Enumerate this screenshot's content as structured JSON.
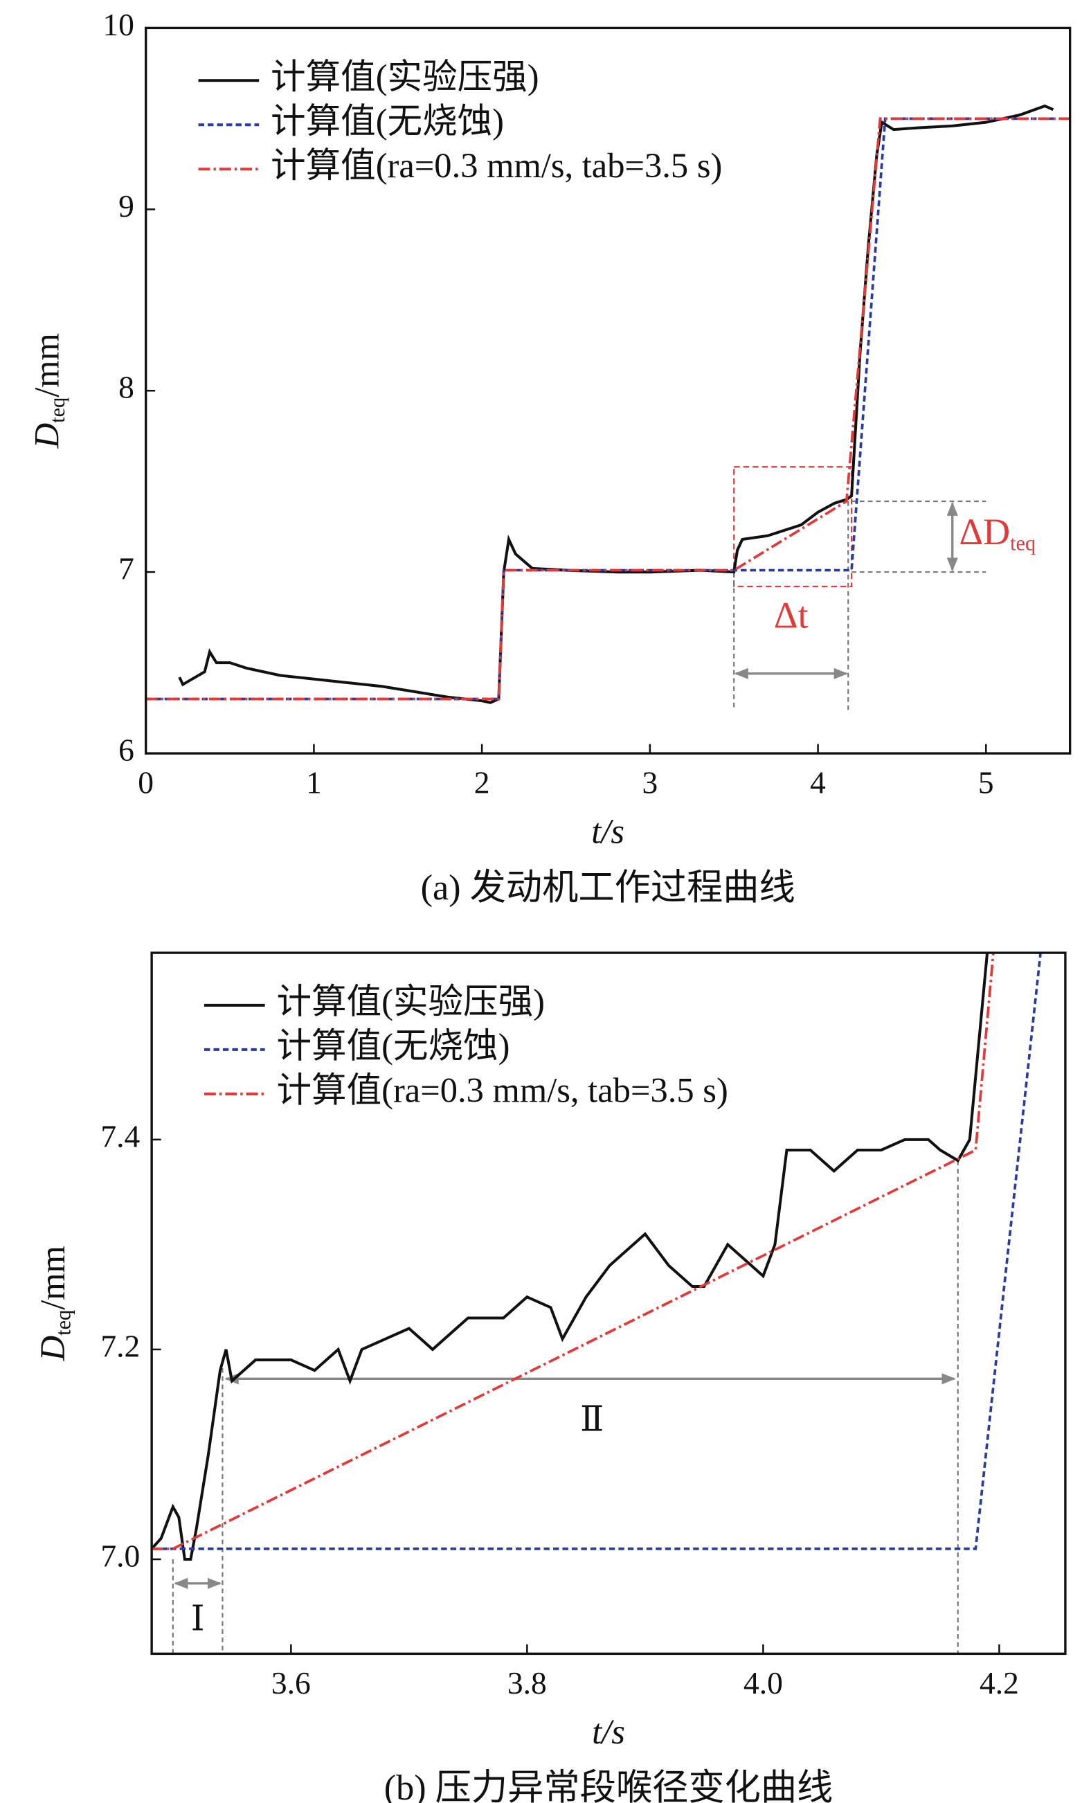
{
  "chart_data": [
    {
      "type": "line",
      "caption": "(a) 发动机工作过程曲线",
      "xlabel": "t/s",
      "ylabel": "D",
      "ylabel_sub": "teq",
      "ylabel_unit": "/mm",
      "xlim": [
        0,
        5.5
      ],
      "ylim": [
        6,
        10
      ],
      "xticks": [
        0,
        1,
        2,
        3,
        4,
        5
      ],
      "yticks": [
        6,
        7,
        8,
        9,
        10
      ],
      "legend": "upper left",
      "annotations": [
        "Δt",
        "ΔD",
        "teq"
      ],
      "series": [
        {
          "name": "计算值(实验压强)",
          "color": "#111111",
          "style": "solid",
          "x": [
            0.2,
            0.22,
            0.35,
            0.38,
            0.42,
            0.5,
            0.6,
            0.7,
            0.8,
            1.0,
            1.2,
            1.4,
            1.6,
            1.8,
            2.0,
            2.05,
            2.1,
            2.13,
            2.16,
            2.2,
            2.3,
            2.5,
            2.8,
            3.0,
            3.3,
            3.5,
            3.52,
            3.55,
            3.7,
            3.9,
            4.0,
            4.1,
            4.17,
            4.2,
            4.25,
            4.3,
            4.35,
            4.38,
            4.45,
            4.6,
            4.8,
            5.0,
            5.2,
            5.35,
            5.4
          ],
          "values": [
            6.42,
            6.38,
            6.45,
            6.56,
            6.5,
            6.5,
            6.47,
            6.45,
            6.43,
            6.41,
            6.39,
            6.37,
            6.34,
            6.31,
            6.29,
            6.28,
            6.3,
            7.0,
            7.18,
            7.1,
            7.02,
            7.01,
            7.0,
            7.0,
            7.01,
            7.0,
            7.12,
            7.18,
            7.2,
            7.26,
            7.33,
            7.38,
            7.4,
            7.42,
            8.2,
            8.8,
            9.3,
            9.48,
            9.44,
            9.45,
            9.46,
            9.48,
            9.52,
            9.57,
            9.55
          ]
        },
        {
          "name": "计算值(无烧蚀)",
          "color": "#2b3d9c",
          "style": "dashed",
          "x": [
            0,
            2.1,
            2.13,
            4.2,
            4.4,
            5.5
          ],
          "values": [
            6.3,
            6.3,
            7.01,
            7.01,
            9.5,
            9.5
          ]
        },
        {
          "name": "计算值(ra=0.3 mm/s, tab=3.5 s)",
          "color": "#e03a3a",
          "style": "dashdot",
          "x": [
            0,
            2.1,
            2.13,
            3.5,
            4.17,
            4.37,
            5.5
          ],
          "values": [
            6.3,
            6.3,
            7.01,
            7.01,
            7.39,
            9.5,
            9.5
          ]
        }
      ]
    },
    {
      "type": "line",
      "caption": "(b) 压力异常段喉径变化曲线",
      "xlabel": "t/s",
      "ylabel": "D",
      "ylabel_sub": "teq",
      "ylabel_unit": "/mm",
      "xlim": [
        3.482,
        4.256
      ],
      "ylim": [
        6.91,
        7.578
      ],
      "xticks": [
        3.6,
        3.8,
        {
          "value": 4,
          "label": "4.0"
        },
        4.2
      ],
      "yticks": [
        {
          "value": 7,
          "label": "7.0"
        },
        7.2,
        7.4
      ],
      "legend": "upper left",
      "annotations": [
        "Ⅰ",
        "Ⅱ"
      ],
      "series": [
        {
          "name": "计算值(实验压强)",
          "color": "#111111",
          "style": "solid",
          "x": [
            3.482,
            3.49,
            3.5,
            3.505,
            3.51,
            3.515,
            3.52,
            3.53,
            3.54,
            3.545,
            3.55,
            3.57,
            3.6,
            3.62,
            3.64,
            3.65,
            3.66,
            3.7,
            3.72,
            3.75,
            3.78,
            3.8,
            3.82,
            3.83,
            3.85,
            3.87,
            3.9,
            3.92,
            3.94,
            3.95,
            3.97,
            3.99,
            4.0,
            4.01,
            4.02,
            4.04,
            4.06,
            4.08,
            4.1,
            4.12,
            4.14,
            4.15,
            4.165,
            4.175,
            4.19
          ],
          "values": [
            7.01,
            7.02,
            7.05,
            7.04,
            7.0,
            7.0,
            7.03,
            7.1,
            7.18,
            7.2,
            7.17,
            7.19,
            7.19,
            7.18,
            7.2,
            7.17,
            7.2,
            7.22,
            7.2,
            7.23,
            7.23,
            7.25,
            7.24,
            7.21,
            7.25,
            7.28,
            7.31,
            7.28,
            7.26,
            7.26,
            7.3,
            7.28,
            7.27,
            7.3,
            7.39,
            7.39,
            7.37,
            7.39,
            7.39,
            7.4,
            7.4,
            7.39,
            7.38,
            7.4,
            7.58
          ]
        },
        {
          "name": "计算值(无烧蚀)",
          "color": "#2b3d9c",
          "style": "dashed",
          "x": [
            3.482,
            4.18,
            4.235
          ],
          "values": [
            7.01,
            7.01,
            7.578
          ]
        },
        {
          "name": "计算值(ra=0.3 mm/s, tab=3.5 s)",
          "color": "#e03a3a",
          "style": "dashdot",
          "x": [
            3.482,
            3.5,
            4.18,
            4.195
          ],
          "values": [
            7.01,
            7.01,
            7.39,
            7.578
          ]
        }
      ]
    }
  ]
}
